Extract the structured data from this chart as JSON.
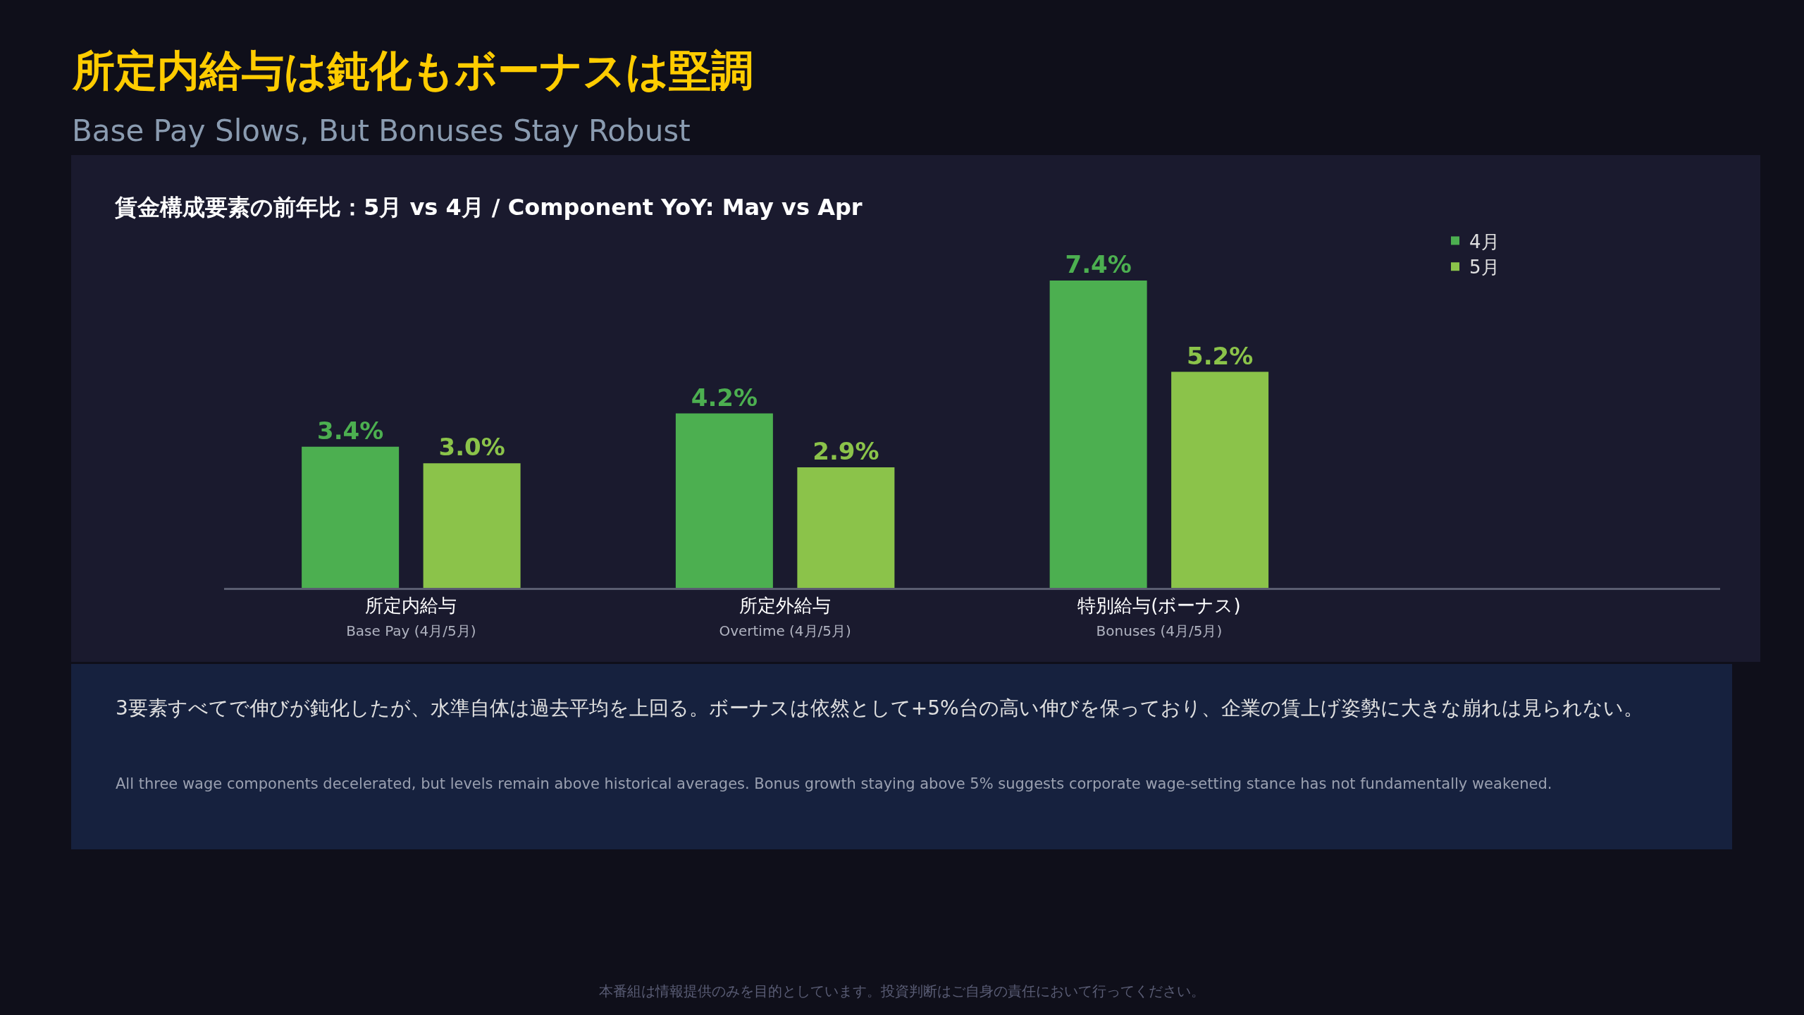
{
  "chart_data": {
    "type": "bar",
    "title": "所定内給与は鈍化もボーナスは堅調",
    "subtitle": "Base Pay Slows, But Bonuses Stay Robust",
    "annotations": [
      "賃金構成要素の前年比：5月 vs 4月 / Component YoY: May vs Apr",
      "3要素すべてで伸びが鈍化したが、水準自体は過去平均を上回る。ボーナスは依然として+5%台の高い伸びを保っており、企業の賃上げ姿勢に大きな崩れは見られない。",
      "All three wage components decelerated, but levels remain above historical averages. Bonus growth staying above 5% suggests corporate wage-setting stance has not fundamentally weakened.",
      "本番組は情報提供のみを目的としています。投資判断はご自身の責任において行ってください。"
    ],
    "categories": [
      "所定内給与\nBase Pay (4月/5月)",
      "所定外給与\nOvertime (4月/5月)",
      "特別給与(ボーナス)\nBonuses (4月/5月)"
    ],
    "series": [
      {
        "name": "4月",
        "color": "#4caf50",
        "values": [
          3.4,
          4.2,
          7.4
        ],
        "value_labels": [
          "3.4%",
          "4.2%",
          "7.4%"
        ]
      },
      {
        "name": "5月",
        "color": "#8bc34a",
        "values": [
          3.0,
          2.9,
          5.2
        ],
        "value_labels": [
          "3.0%",
          "2.9%",
          "5.2%"
        ]
      }
    ],
    "legend": "top right",
    "grid": false
  }
}
